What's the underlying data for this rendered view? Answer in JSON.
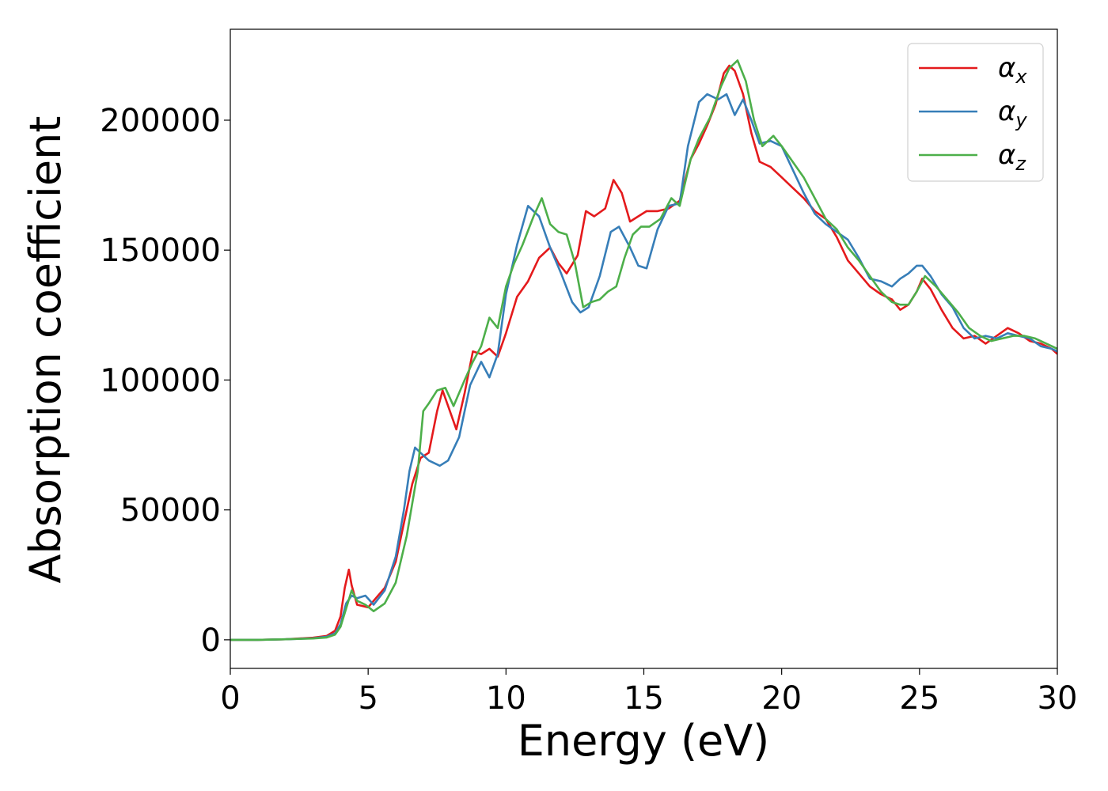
{
  "chart_data": {
    "type": "line",
    "xlabel": "Energy (eV)",
    "ylabel": "Absorption coefficient",
    "xlim": [
      0,
      30
    ],
    "ylim": [
      -11000,
      235000
    ],
    "xticks": [
      0,
      5,
      10,
      15,
      20,
      25,
      30
    ],
    "yticks": [
      0,
      50000,
      100000,
      150000,
      200000
    ],
    "grid": false,
    "legend_position": "top-right",
    "series": [
      {
        "name": "αx",
        "base": "α",
        "sub": "x",
        "color": "#e41a1c",
        "x": [
          0,
          1,
          2,
          3,
          3.5,
          3.8,
          4.0,
          4.15,
          4.3,
          4.4,
          4.6,
          5.0,
          5.2,
          5.6,
          6.0,
          6.3,
          6.6,
          6.9,
          7.2,
          7.5,
          7.7,
          7.9,
          8.2,
          8.5,
          8.8,
          9.1,
          9.4,
          9.7,
          10.0,
          10.4,
          10.8,
          11.2,
          11.6,
          11.9,
          12.2,
          12.6,
          12.9,
          13.2,
          13.6,
          13.9,
          14.2,
          14.5,
          14.8,
          15.1,
          15.5,
          15.9,
          16.3,
          16.7,
          17.0,
          17.3,
          17.6,
          17.9,
          18.1,
          18.3,
          18.6,
          18.9,
          19.2,
          19.6,
          20.0,
          20.4,
          20.8,
          21.2,
          21.6,
          22.0,
          22.4,
          22.8,
          23.2,
          23.6,
          24.0,
          24.3,
          24.6,
          24.9,
          25.1,
          25.4,
          25.8,
          26.2,
          26.6,
          27.0,
          27.4,
          27.8,
          28.2,
          28.6,
          29.0,
          29.4,
          29.8,
          30.0
        ],
        "y": [
          0,
          0,
          200,
          800,
          1500,
          3500,
          9000,
          20000,
          27000,
          21000,
          13500,
          12500,
          15000,
          20000,
          30000,
          45000,
          60000,
          70000,
          72000,
          88000,
          96000,
          90000,
          81000,
          95000,
          111000,
          110000,
          112000,
          109000,
          118000,
          132000,
          138000,
          147000,
          151000,
          145000,
          141000,
          148000,
          165000,
          163000,
          166000,
          177000,
          172000,
          161000,
          163000,
          165000,
          165000,
          166000,
          169000,
          185000,
          191000,
          198000,
          206000,
          218000,
          221000,
          219000,
          210000,
          195000,
          184000,
          182000,
          178000,
          174000,
          170000,
          165000,
          162000,
          155000,
          146000,
          141000,
          136000,
          133000,
          131000,
          127000,
          129000,
          134000,
          139000,
          135000,
          127000,
          120000,
          116000,
          117000,
          114000,
          117000,
          120000,
          118000,
          115000,
          114000,
          112000,
          110000
        ]
      },
      {
        "name": "αy",
        "base": "α",
        "sub": "y",
        "color": "#377eb8",
        "x": [
          0,
          1,
          2,
          3,
          3.5,
          3.8,
          4.0,
          4.2,
          4.4,
          4.6,
          4.9,
          5.2,
          5.6,
          6.0,
          6.3,
          6.5,
          6.7,
          6.9,
          7.2,
          7.6,
          7.9,
          8.3,
          8.7,
          9.1,
          9.4,
          9.7,
          10.0,
          10.4,
          10.8,
          11.2,
          11.6,
          12.0,
          12.4,
          12.7,
          13.0,
          13.4,
          13.8,
          14.1,
          14.5,
          14.8,
          15.1,
          15.5,
          15.9,
          16.3,
          16.6,
          17.0,
          17.3,
          17.7,
          18.0,
          18.3,
          18.6,
          18.9,
          19.2,
          19.6,
          20.0,
          20.4,
          20.8,
          21.2,
          21.6,
          22.0,
          22.4,
          22.8,
          23.2,
          23.6,
          24.0,
          24.3,
          24.6,
          24.9,
          25.1,
          25.4,
          25.8,
          26.2,
          26.6,
          27.0,
          27.4,
          27.8,
          28.2,
          28.6,
          29.0,
          29.4,
          29.8,
          30.0
        ],
        "y": [
          0,
          0,
          200,
          600,
          1200,
          2500,
          6000,
          14000,
          17000,
          16000,
          17000,
          13500,
          19000,
          32000,
          50000,
          65000,
          74000,
          72000,
          69000,
          67000,
          69000,
          78000,
          98000,
          107000,
          101000,
          110000,
          133000,
          152000,
          167000,
          163000,
          151000,
          141000,
          130000,
          126000,
          128000,
          140000,
          157000,
          159000,
          151000,
          144000,
          143000,
          158000,
          167000,
          168000,
          190000,
          207000,
          210000,
          208000,
          210000,
          202000,
          208000,
          200000,
          191000,
          192000,
          190000,
          181000,
          172000,
          164000,
          160000,
          157000,
          154000,
          147000,
          139000,
          138000,
          136000,
          139000,
          141000,
          144000,
          144000,
          140000,
          133000,
          128000,
          120000,
          116000,
          117000,
          116000,
          118000,
          117000,
          116000,
          113000,
          112000,
          111000
        ]
      },
      {
        "name": "αz",
        "base": "α",
        "sub": "z",
        "color": "#4daf4a",
        "x": [
          0,
          1,
          2,
          3,
          3.5,
          3.8,
          4.0,
          4.2,
          4.4,
          4.6,
          4.9,
          5.2,
          5.6,
          6.0,
          6.4,
          6.8,
          7.0,
          7.2,
          7.5,
          7.8,
          8.1,
          8.5,
          8.8,
          9.1,
          9.4,
          9.7,
          10.0,
          10.3,
          10.6,
          11.0,
          11.3,
          11.6,
          11.9,
          12.2,
          12.5,
          12.8,
          13.1,
          13.4,
          13.7,
          14.0,
          14.3,
          14.6,
          14.9,
          15.2,
          15.6,
          16.0,
          16.3,
          16.7,
          17.0,
          17.4,
          17.8,
          18.1,
          18.4,
          18.7,
          19.0,
          19.3,
          19.7,
          20.0,
          20.4,
          20.8,
          21.2,
          21.6,
          22.0,
          22.4,
          22.8,
          23.2,
          23.6,
          24.0,
          24.3,
          24.6,
          24.9,
          25.2,
          25.6,
          26.0,
          26.4,
          26.8,
          27.2,
          27.6,
          28.0,
          28.4,
          28.8,
          29.2,
          29.6,
          30.0
        ],
        "y": [
          0,
          0,
          200,
          500,
          900,
          2000,
          5000,
          12000,
          19000,
          15000,
          13500,
          11000,
          14000,
          22000,
          40000,
          65000,
          88000,
          91000,
          96000,
          97000,
          90000,
          100000,
          107000,
          113000,
          124000,
          120000,
          136000,
          145000,
          152000,
          163000,
          170000,
          160000,
          157000,
          156000,
          145000,
          128000,
          130000,
          131000,
          134000,
          136000,
          147000,
          156000,
          159000,
          159000,
          162000,
          170000,
          167000,
          185000,
          193000,
          201000,
          213000,
          220000,
          223000,
          215000,
          200000,
          190000,
          194000,
          190000,
          184000,
          178000,
          170000,
          162000,
          158000,
          151000,
          146000,
          140000,
          134000,
          130000,
          129000,
          129000,
          134000,
          140000,
          136000,
          131000,
          126000,
          120000,
          117000,
          115000,
          116000,
          117000,
          117000,
          116000,
          114000,
          112000
        ]
      }
    ]
  }
}
